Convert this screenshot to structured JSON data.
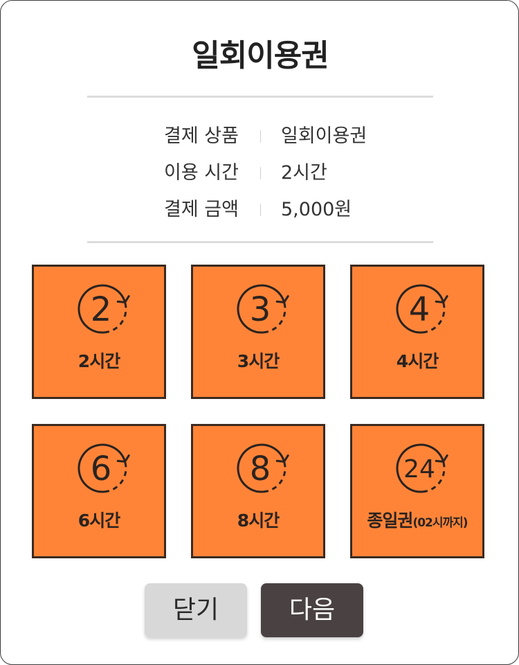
{
  "dialog": {
    "title": "일회이용권"
  },
  "summary": {
    "rows": [
      {
        "label": "결제 상품",
        "value": "일회이용권"
      },
      {
        "label": "이용 시간",
        "value": "2시간"
      },
      {
        "label": "결제 금액",
        "value": "5,000원"
      }
    ]
  },
  "options": [
    {
      "number": "2",
      "label": "2시간",
      "sub": ""
    },
    {
      "number": "3",
      "label": "3시간",
      "sub": ""
    },
    {
      "number": "4",
      "label": "4시간",
      "sub": ""
    },
    {
      "number": "6",
      "label": "6시간",
      "sub": ""
    },
    {
      "number": "8",
      "label": "8시간",
      "sub": ""
    },
    {
      "number": "24",
      "label": "종일권",
      "sub": "(02시까지)"
    }
  ],
  "buttons": {
    "close_label": "닫기",
    "next_label": "다음"
  },
  "colors": {
    "tile_fill": "#ff8438",
    "tile_border": "#3b2a20",
    "next_button": "#4a4242",
    "close_button": "#d8d8d8"
  },
  "icons": {
    "option_icon": "clock-refresh-icon"
  }
}
